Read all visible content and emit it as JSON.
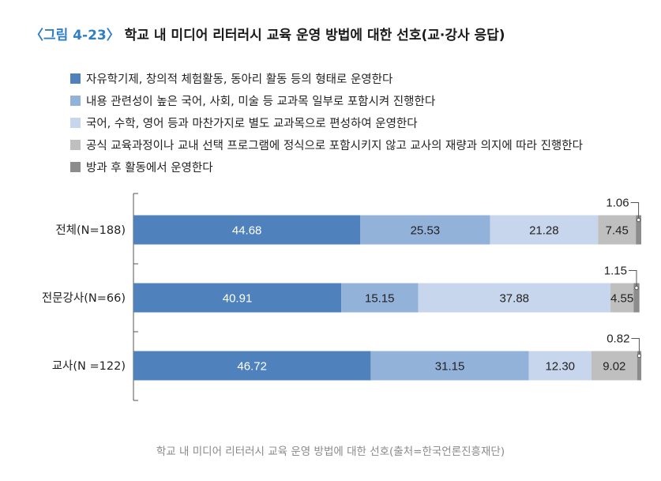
{
  "title": {
    "figure_no": "〈그림 4-23〉",
    "text": "학교 내 미디어 리터러시 교육 운영 방법에 대한 선호(교·강사 응답)"
  },
  "source_note": "학교 내 미디어 리터러시 교육 운영 방법에 대한 선호(출처=한국언론진흥재단)",
  "colors": [
    "#4f82bd",
    "#93b2d9",
    "#c7d6ec",
    "#bfbfbf",
    "#8c8c8c"
  ],
  "chart_data": {
    "type": "bar",
    "orientation": "horizontal",
    "stacked": true,
    "categories": [
      "전체(N=188)",
      "전문강사(N=66)",
      "교사(N =122)"
    ],
    "series": [
      {
        "name": "자유학기제, 창의적 체험활동, 동아리 활동 등의 형태로 운영한다",
        "values": [
          44.68,
          40.91,
          46.72
        ]
      },
      {
        "name": "내용 관련성이 높은 국어, 사회, 미술 등 교과목 일부로 포함시켜 진행한다",
        "values": [
          25.53,
          15.15,
          31.15
        ]
      },
      {
        "name": "국어, 수학, 영어 등과 마찬가지로 별도 교과목으로 편성하여 운영한다",
        "values": [
          21.28,
          37.88,
          12.3
        ]
      },
      {
        "name": "공식 교육과정이나 교내 선택 프로그램에 정식으로 포함시키지 않고 교사의 재량과 의지에 따라 진행한다",
        "values": [
          7.45,
          4.55,
          9.02
        ]
      },
      {
        "name": "방과 후 활동에서 운영한다",
        "values": [
          1.06,
          1.15,
          0.82
        ]
      }
    ],
    "data_labels": [
      [
        "44.68",
        "25.53",
        "21.28",
        "7.45",
        "1.06"
      ],
      [
        "40.91",
        "15.15",
        "37.88",
        "4.55",
        "1.15"
      ],
      [
        "46.72",
        "31.15",
        "12.30",
        "9.02",
        "0.82"
      ]
    ],
    "xlim": [
      0,
      100
    ],
    "grid": false,
    "legend_position": "top"
  }
}
